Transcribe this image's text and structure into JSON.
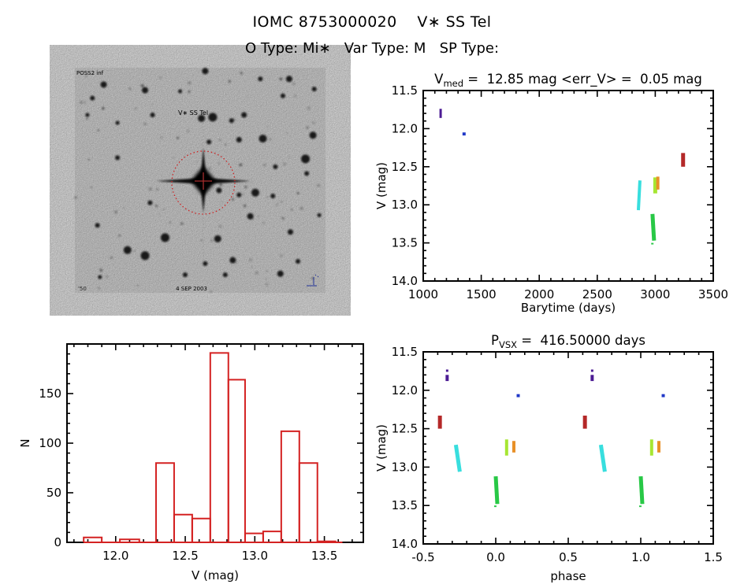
{
  "header": {
    "title": "IOMC 8753000020    V∗ SS Tel",
    "subtitle": "O Type: Mi∗   Var Type: M   SP Type:"
  },
  "starfield": {
    "target_label": "V∗ SS Tel",
    "corner_top_left": "POSS2 inf",
    "corner_bottom": "4 SEP 2003",
    "corner_bottom_left": "'50",
    "circle_color": "#cc2222",
    "label_color": "#cc2222",
    "corner_text_color": "#223399",
    "background_color": "#ececec",
    "stars": [
      [
        0.52,
        0.015,
        4
      ],
      [
        0.115,
        0.075,
        4
      ],
      [
        0.28,
        0.1,
        4
      ],
      [
        0.855,
        0.05,
        4
      ],
      [
        0.74,
        0.05,
        3
      ],
      [
        0.955,
        0.095,
        3
      ],
      [
        0.83,
        0.125,
        3
      ],
      [
        0.07,
        0.135,
        3
      ],
      [
        0.42,
        0.105,
        2.5
      ],
      [
        0.05,
        0.21,
        2.5
      ],
      [
        0.31,
        0.21,
        3
      ],
      [
        0.505,
        0.225,
        4.5
      ],
      [
        0.55,
        0.22,
        5.5
      ],
      [
        0.625,
        0.235,
        3
      ],
      [
        0.675,
        0.21,
        3.5
      ],
      [
        0.17,
        0.245,
        2.5
      ],
      [
        0.95,
        0.3,
        4.5
      ],
      [
        0.75,
        0.315,
        5
      ],
      [
        0.655,
        0.32,
        3.5
      ],
      [
        0.535,
        0.33,
        3
      ],
      [
        0.92,
        0.405,
        5.5
      ],
      [
        0.17,
        0.4,
        3
      ],
      [
        0.8,
        0.44,
        3
      ],
      [
        0.925,
        0.47,
        3
      ],
      [
        0.575,
        0.545,
        3.5
      ],
      [
        0.72,
        0.555,
        5
      ],
      [
        0.655,
        0.565,
        3
      ],
      [
        0.79,
        0.57,
        3
      ],
      [
        0.3,
        0.6,
        3
      ],
      [
        0.7,
        0.66,
        4
      ],
      [
        0.09,
        0.7,
        3
      ],
      [
        0.86,
        0.73,
        3.5
      ],
      [
        0.975,
        0.655,
        2.5
      ],
      [
        0.36,
        0.755,
        5.5
      ],
      [
        0.57,
        0.76,
        4.5
      ],
      [
        0.21,
        0.81,
        5
      ],
      [
        0.28,
        0.835,
        5.5
      ],
      [
        0.63,
        0.855,
        4
      ],
      [
        0.52,
        0.87,
        3
      ],
      [
        0.89,
        0.86,
        3
      ],
      [
        0.82,
        0.915,
        4
      ],
      [
        0.6,
        0.92,
        3
      ],
      [
        0.44,
        0.92,
        3
      ],
      [
        0.1,
        0.93,
        2.5
      ]
    ]
  },
  "chart_data": [
    {
      "id": "lightcurve",
      "type": "scatter",
      "title": {
        "pre": "V",
        "sub": "med",
        "post": " =  12.85 mag <err_V> =  0.05 mag"
      },
      "xlabel": "Barytime (days)",
      "ylabel": "V (mag)",
      "xlim": [
        1000,
        3500
      ],
      "ylim": [
        14.0,
        11.5
      ],
      "xticks": {
        "major": [
          1000,
          1500,
          2000,
          2500,
          3000,
          3500
        ],
        "minor_step": 100,
        "format": "int"
      },
      "yticks": {
        "major": [
          11.5,
          12.0,
          12.5,
          13.0,
          13.5,
          14.0
        ],
        "minor_step": 0.1,
        "format": "1dp"
      },
      "grid": false,
      "streaks": [
        {
          "color": "#4c1c94",
          "x": 1150,
          "v1": 11.74,
          "v2": 11.86,
          "w": 3
        },
        {
          "color": "#2038c8",
          "x": 1352,
          "v1": 12.05,
          "v2": 12.09,
          "w": 4
        },
        {
          "color": "#38dede",
          "x": 2868,
          "v1": 12.68,
          "v2": 13.07,
          "w": 4,
          "dx": -2
        },
        {
          "color": "#28c846",
          "x": 2976,
          "v1": 13.12,
          "v2": 13.47,
          "w": 5,
          "dx": 2
        },
        {
          "color": "#28c846",
          "x": 2975,
          "v1": 13.5,
          "v2": 13.52,
          "w": 3
        },
        {
          "color": "#a6e632",
          "x": 3000,
          "v1": 12.64,
          "v2": 12.85,
          "w": 5
        },
        {
          "color": "#e89028",
          "x": 3022,
          "v1": 12.63,
          "v2": 12.8,
          "w": 4
        },
        {
          "color": "#b42828",
          "x": 3240,
          "v1": 12.32,
          "v2": 12.5,
          "w": 5
        }
      ]
    },
    {
      "id": "histogram",
      "type": "bar",
      "xlabel": "V (mag)",
      "ylabel": "N",
      "xlim": [
        11.65,
        13.78
      ],
      "ylim": [
        0,
        200
      ],
      "bar_color": "#d42222",
      "xticks": {
        "major": [
          12.0,
          12.5,
          13.0,
          13.5
        ],
        "minor_step": 0.1,
        "format": "1dp"
      },
      "yticks": {
        "major": [
          0,
          50,
          100,
          150
        ],
        "minor_step": 10,
        "format": "int"
      },
      "grid": false,
      "bins": [
        {
          "x1": 11.77,
          "x2": 11.9,
          "n": 5
        },
        {
          "x1": 12.03,
          "x2": 12.17,
          "n": 3
        },
        {
          "x1": 12.29,
          "x2": 12.42,
          "n": 80
        },
        {
          "x1": 12.42,
          "x2": 12.55,
          "n": 28
        },
        {
          "x1": 12.55,
          "x2": 12.68,
          "n": 24
        },
        {
          "x1": 12.68,
          "x2": 12.81,
          "n": 191
        },
        {
          "x1": 12.81,
          "x2": 12.93,
          "n": 164
        },
        {
          "x1": 12.93,
          "x2": 13.06,
          "n": 9
        },
        {
          "x1": 13.06,
          "x2": 13.19,
          "n": 11
        },
        {
          "x1": 13.19,
          "x2": 13.32,
          "n": 112
        },
        {
          "x1": 13.32,
          "x2": 13.45,
          "n": 80
        },
        {
          "x1": 13.45,
          "x2": 13.58,
          "n": 1
        }
      ]
    },
    {
      "id": "phasecurve",
      "type": "scatter",
      "title": {
        "pre": "P",
        "sub": "VSX",
        "post": " =  416.50000 days"
      },
      "xlabel": "phase",
      "ylabel": "V (mag)",
      "xlim": [
        -0.5,
        1.5
      ],
      "ylim": [
        14.0,
        11.5
      ],
      "xticks": {
        "major": [
          -0.5,
          0.0,
          0.5,
          1.0,
          1.5
        ],
        "minor_step": 0.1,
        "format": "1dp"
      },
      "yticks": {
        "major": [
          11.5,
          12.0,
          12.5,
          13.0,
          13.5,
          14.0
        ],
        "minor_step": 0.1,
        "format": "1dp"
      },
      "grid": false,
      "streaks": [
        {
          "color": "#b42828",
          "x": -0.385,
          "v1": 12.33,
          "v2": 12.5,
          "w": 5
        },
        {
          "color": "#b42828",
          "x": 0.615,
          "v1": 12.33,
          "v2": 12.5,
          "w": 5
        },
        {
          "color": "#4c1c94",
          "x": -0.335,
          "v1": 11.73,
          "v2": 11.76,
          "w": 3
        },
        {
          "color": "#4c1c94",
          "x": -0.335,
          "v1": 11.8,
          "v2": 11.88,
          "w": 4
        },
        {
          "color": "#4c1c94",
          "x": 0.665,
          "v1": 11.73,
          "v2": 11.76,
          "w": 3
        },
        {
          "color": "#4c1c94",
          "x": 0.665,
          "v1": 11.8,
          "v2": 11.88,
          "w": 4
        },
        {
          "color": "#38dede",
          "x": -0.275,
          "v1": 12.71,
          "v2": 13.06,
          "w": 5,
          "dx": 5
        },
        {
          "color": "#38dede",
          "x": 0.725,
          "v1": 12.71,
          "v2": 13.06,
          "w": 5,
          "dx": 5
        },
        {
          "color": "#28c846",
          "x": 0.0,
          "v1": 13.12,
          "v2": 13.48,
          "w": 5,
          "dx": 2
        },
        {
          "color": "#28c846",
          "x": -0.003,
          "v1": 13.5,
          "v2": 13.52,
          "w": 3
        },
        {
          "color": "#28c846",
          "x": 1.0,
          "v1": 13.12,
          "v2": 13.48,
          "w": 5,
          "dx": 2
        },
        {
          "color": "#28c846",
          "x": 0.997,
          "v1": 13.5,
          "v2": 13.52,
          "w": 3
        },
        {
          "color": "#a6e632",
          "x": 0.075,
          "v1": 12.64,
          "v2": 12.85,
          "w": 4
        },
        {
          "color": "#a6e632",
          "x": 1.075,
          "v1": 12.64,
          "v2": 12.85,
          "w": 4
        },
        {
          "color": "#e89028",
          "x": 0.125,
          "v1": 12.66,
          "v2": 12.81,
          "w": 4
        },
        {
          "color": "#e89028",
          "x": 1.125,
          "v1": 12.66,
          "v2": 12.81,
          "w": 4
        },
        {
          "color": "#2038c8",
          "x": 0.155,
          "v1": 12.05,
          "v2": 12.09,
          "w": 4
        },
        {
          "color": "#2038c8",
          "x": 1.155,
          "v1": 12.05,
          "v2": 12.09,
          "w": 4
        }
      ]
    }
  ]
}
